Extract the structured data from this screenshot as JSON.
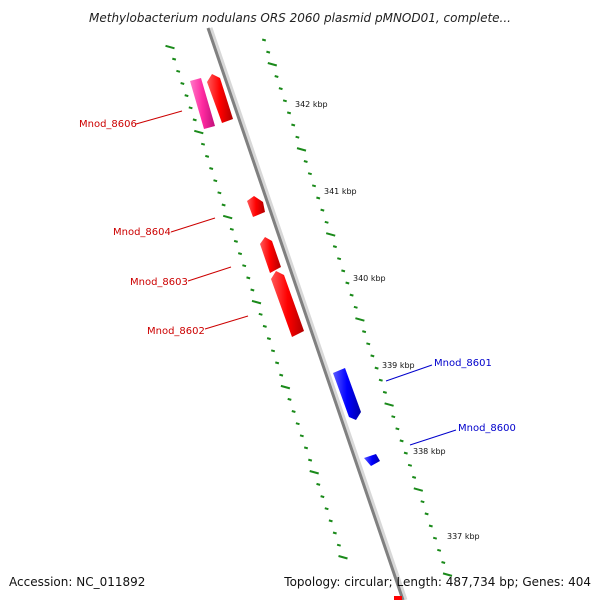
{
  "title": "Methylobacterium nodulans ORS 2060 plasmid pMNOD01, complete...",
  "footer": {
    "accession": "Accession: NC_011892",
    "summary": "Topology: circular; Length: 487,734 bp; Genes: 404"
  },
  "colors": {
    "backbone": "#8a8a8a",
    "tick": "#1a8a1a",
    "forward_gene": "#ff0000",
    "forward_gene_alt": "#ff2aa0",
    "reverse_gene": "#0000ff",
    "forward_label": "#cc0000",
    "reverse_label": "#0000cc"
  },
  "scale_labels": [
    "342 kbp",
    "341 kbp",
    "340 kbp",
    "339 kbp",
    "338 kbp",
    "337 kbp"
  ],
  "genes": [
    {
      "label": "Mnod_8606",
      "strand": "forward",
      "color": "forward_label"
    },
    {
      "label": "Mnod_8604",
      "strand": "forward",
      "color": "forward_label"
    },
    {
      "label": "Mnod_8603",
      "strand": "forward",
      "color": "forward_label"
    },
    {
      "label": "Mnod_8602",
      "strand": "forward",
      "color": "forward_label"
    },
    {
      "label": "Mnod_8601",
      "strand": "reverse",
      "color": "reverse_label"
    },
    {
      "label": "Mnod_8600",
      "strand": "reverse",
      "color": "reverse_label"
    }
  ]
}
